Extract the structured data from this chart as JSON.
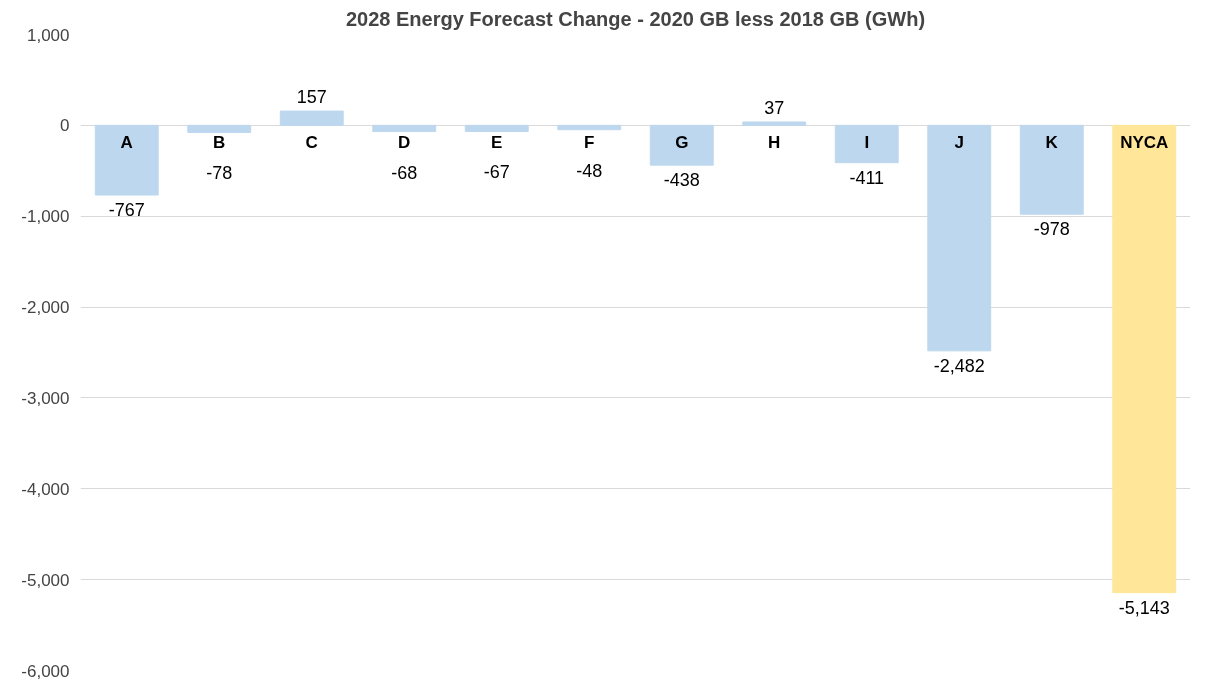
{
  "chart_data": {
    "type": "bar",
    "title": "2028 Energy Forecast Change - 2020 GB less 2018 GB (GWh)",
    "categories": [
      "A",
      "B",
      "C",
      "D",
      "E",
      "F",
      "G",
      "H",
      "I",
      "J",
      "K",
      "NYCA"
    ],
    "values": [
      -767,
      -78,
      157,
      -68,
      -67,
      -48,
      -438,
      37,
      -411,
      -2482,
      -978,
      -5143
    ],
    "colors": [
      "#bdd7ee",
      "#bdd7ee",
      "#bdd7ee",
      "#bdd7ee",
      "#bdd7ee",
      "#bdd7ee",
      "#bdd7ee",
      "#bdd7ee",
      "#bdd7ee",
      "#bdd7ee",
      "#bdd7ee",
      "#ffe699"
    ],
    "ylim": [
      -6000,
      1000
    ],
    "yticks": [
      {
        "value": 1000,
        "label": "1,000"
      },
      0,
      {
        "value": -1000,
        "label": "-1,000"
      },
      {
        "value": -2000,
        "label": "-2,000"
      },
      {
        "value": -3000,
        "label": "-3,000"
      },
      {
        "value": -4000,
        "label": "-4,000"
      },
      {
        "value": -5000,
        "label": "-5,000"
      },
      {
        "value": -6000,
        "label": "-6,000"
      }
    ],
    "value_labels": [
      "-767",
      "-78",
      "157",
      "-68",
      "-67",
      "-48",
      "-438",
      "37",
      "-411",
      "-2,482",
      "-978",
      "-5,143"
    ],
    "grid": "y",
    "tick_labels": "y"
  }
}
